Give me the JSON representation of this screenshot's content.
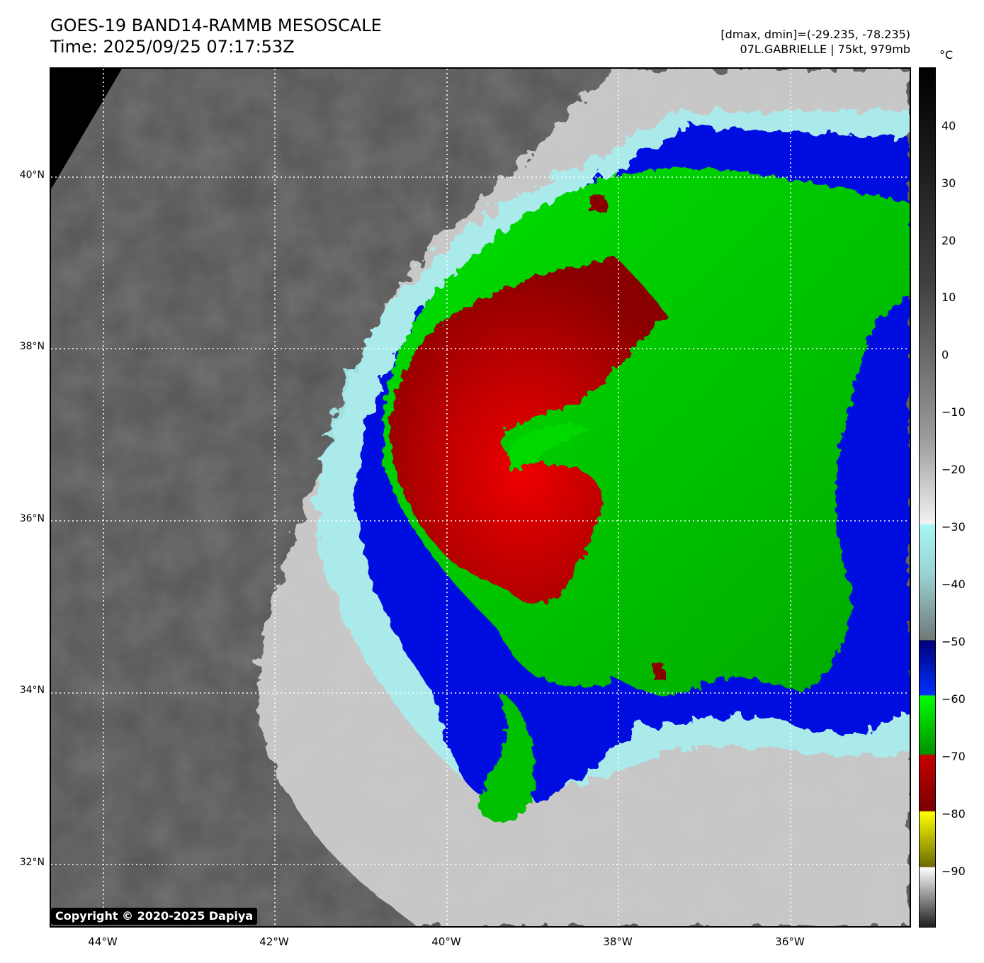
{
  "header": {
    "title": "GOES-19 BAND14-RAMMB MESOSCALE",
    "time": "Time: 2025/09/25 07:17:53Z",
    "dminmax": "[dmax, dmin]=(-29.235, -78.235)",
    "storm": "07L.GABRIELLE | 75kt, 979mb"
  },
  "map": {
    "lat_labels": [
      "40°N",
      "38°N",
      "36°N",
      "34°N",
      "32°N"
    ],
    "lon_labels": [
      "44°W",
      "42°W",
      "40°W",
      "38°W",
      "36°W"
    ],
    "copyright": "Copyright © 2020-2025 Dapiya"
  },
  "colorbar": {
    "unit": "°C",
    "ticks": [
      "40",
      "30",
      "20",
      "10",
      "0",
      "−10",
      "−20",
      "−30",
      "−40",
      "−50",
      "−60",
      "−70",
      "−80",
      "−90"
    ]
  },
  "colors": {
    "background_gray": "#5a5a5a",
    "cloud_white": "#e6e6e6",
    "cyan": "#aaf2f2",
    "blue": "#0000e0",
    "green": "#00d800",
    "red": "#b00000"
  }
}
